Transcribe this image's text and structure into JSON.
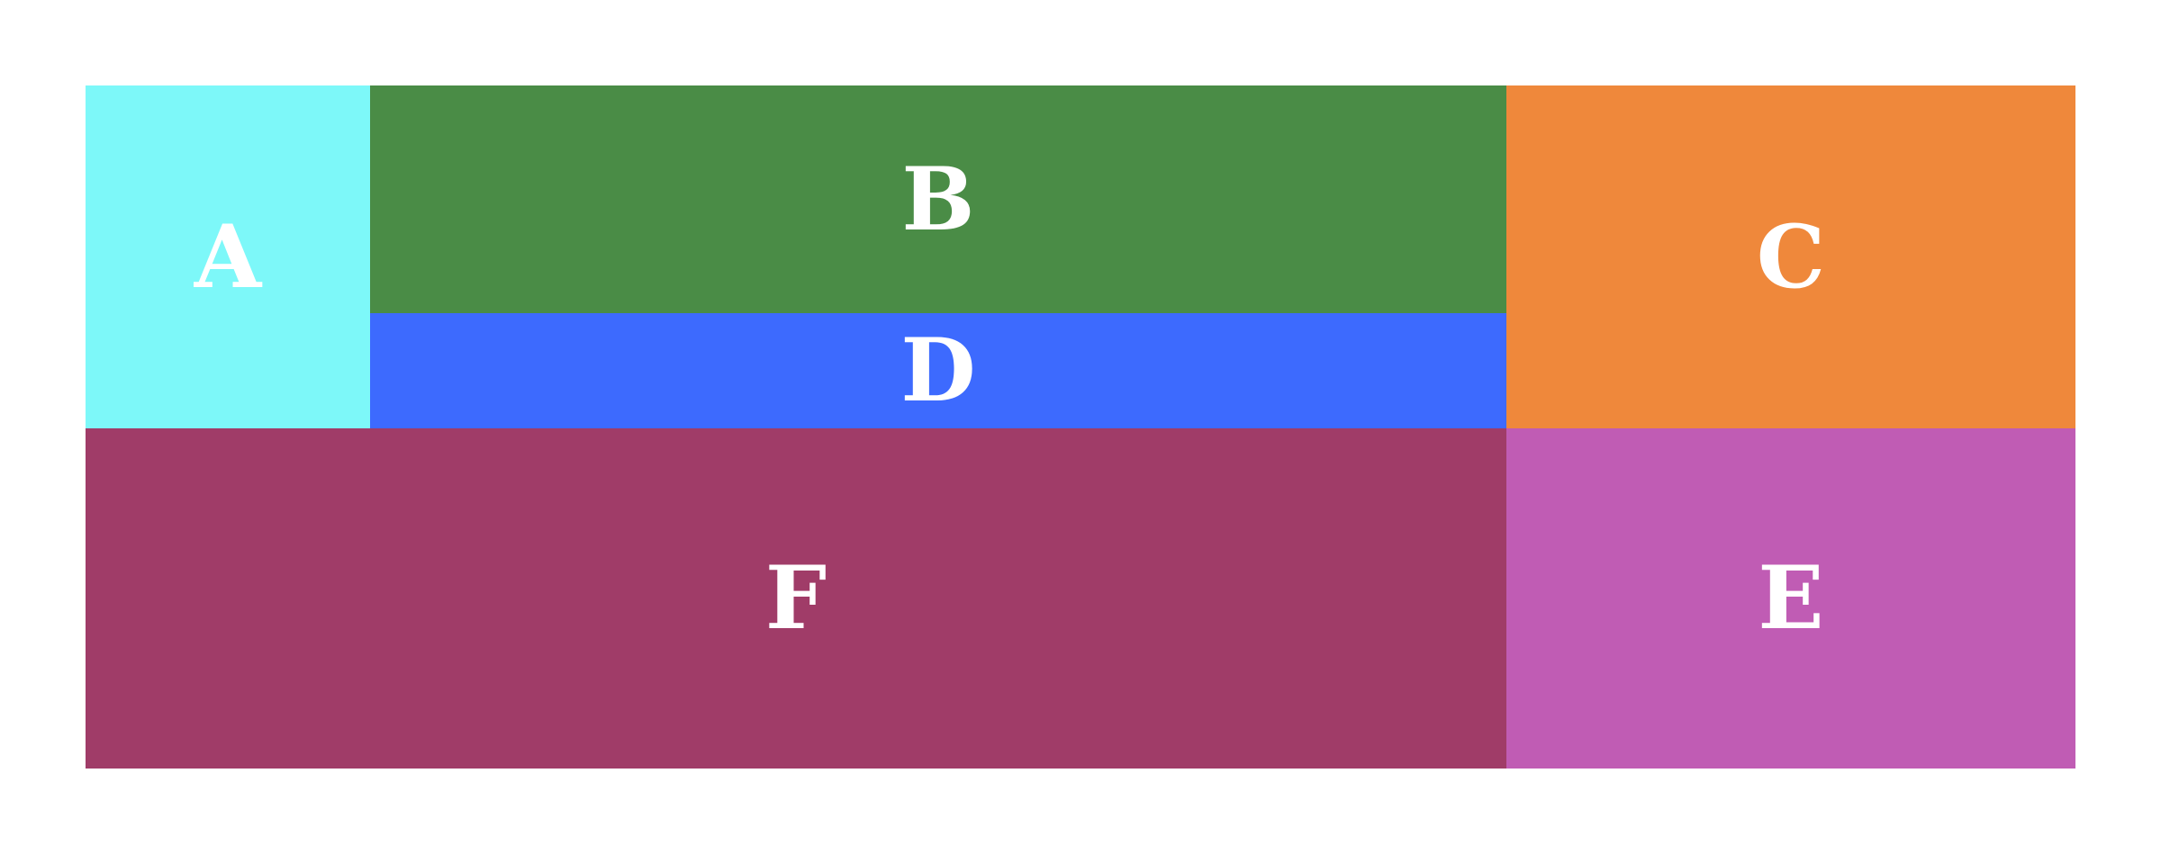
{
  "blocks": [
    {
      "id": "a",
      "label": "A",
      "color": "#7df8f9"
    },
    {
      "id": "b",
      "label": "B",
      "color": "#4a8c46"
    },
    {
      "id": "c",
      "label": "C",
      "color": "#ef883b"
    },
    {
      "id": "d",
      "label": "D",
      "color": "#3d6afe"
    },
    {
      "id": "e",
      "label": "E",
      "color": "#c05cb4"
    },
    {
      "id": "f",
      "label": "F",
      "color": "#a03c68"
    }
  ]
}
